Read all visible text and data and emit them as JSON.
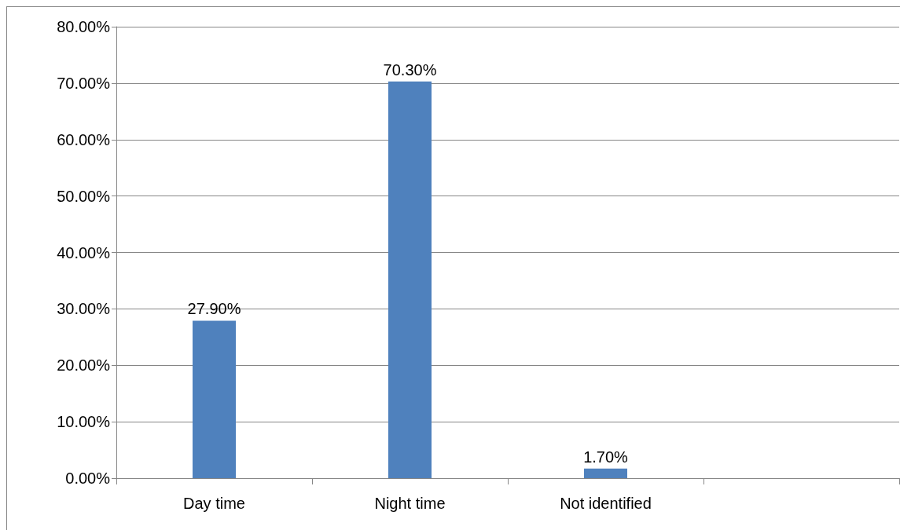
{
  "chart_data": {
    "type": "bar",
    "categories": [
      "Day time",
      "Night time",
      "Not identified",
      null
    ],
    "values": [
      27.9,
      70.3,
      1.7,
      null
    ],
    "value_labels": [
      "27.90%",
      "70.30%",
      "1.70%",
      null
    ],
    "color": "#4f81bd",
    "ylim": [
      0,
      80
    ],
    "yticks": [
      {
        "value": 0,
        "label": "0.00%"
      },
      {
        "value": 10,
        "label": "10.00%"
      },
      {
        "value": 20,
        "label": "20.00%"
      },
      {
        "value": 30,
        "label": "30.00%"
      },
      {
        "value": 40,
        "label": "40.00%"
      },
      {
        "value": 50,
        "label": "50.00%"
      },
      {
        "value": 60,
        "label": "60.00%"
      },
      {
        "value": 70,
        "label": "70.00%"
      },
      {
        "value": 80,
        "label": "80.00%"
      }
    ],
    "grid": "y"
  }
}
